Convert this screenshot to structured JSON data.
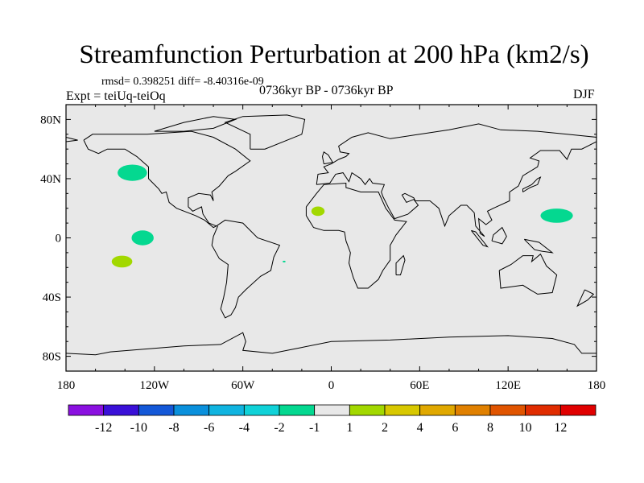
{
  "title": "Streamfunction Perturbation at 200 hPa (km2/s)",
  "stats": "rmsd= 0.398251 diff= -8.40316e-09",
  "experiment": "Expt = teiUq-teiOq",
  "period": "0736kyr BP - 0736kyr BP",
  "season": "DJF",
  "chart_data": {
    "type": "heatmap",
    "projection": "cylindrical-equidistant",
    "lon_range": [
      -180,
      180
    ],
    "lat_range": [
      -90,
      90
    ],
    "x_ticks": [
      {
        "lon": -180,
        "label": "180"
      },
      {
        "lon": -120,
        "label": "120W"
      },
      {
        "lon": -60,
        "label": "60W"
      },
      {
        "lon": 0,
        "label": "0"
      },
      {
        "lon": 60,
        "label": "60E"
      },
      {
        "lon": 120,
        "label": "120E"
      },
      {
        "lon": 180,
        "label": "180"
      }
    ],
    "y_ticks": [
      {
        "lat": 80,
        "label": "80N"
      },
      {
        "lat": 40,
        "label": "40N"
      },
      {
        "lat": 0,
        "label": "0"
      },
      {
        "lat": -40,
        "label": "40S"
      },
      {
        "lat": -80,
        "label": "80S"
      }
    ],
    "colorbar": {
      "labels": [
        "-12",
        "-10",
        "-8",
        "-6",
        "-4",
        "-2",
        "-1",
        "1",
        "2",
        "4",
        "6",
        "8",
        "10",
        "12"
      ],
      "colors": [
        "#8a10e0",
        "#3a10d8",
        "#1458d8",
        "#0a90dc",
        "#10b4e0",
        "#10d2d8",
        "#04d890",
        "#e8e8e8",
        "#a2d800",
        "#d8c800",
        "#e0a800",
        "#e08000",
        "#e05400",
        "#e02c00",
        "#e00000"
      ]
    },
    "anomalies": [
      {
        "lon": -135,
        "lat": 44,
        "dlon": 10,
        "dlat": 5.5,
        "range": "-2 to -1",
        "color": "#04d890"
      },
      {
        "lon": -128,
        "lat": 0,
        "dlon": 7.5,
        "dlat": 5,
        "range": "-2 to -1",
        "color": "#04d890"
      },
      {
        "lon": -142,
        "lat": -16,
        "dlon": 7,
        "dlat": 4,
        "range": "1 to 2",
        "color": "#a2d800"
      },
      {
        "lon": -9,
        "lat": 18,
        "dlon": 4.5,
        "dlat": 3.2,
        "range": "1 to 2",
        "color": "#a2d800"
      },
      {
        "lon": 153,
        "lat": 15,
        "dlon": 11,
        "dlat": 4.8,
        "range": "-2 to -1",
        "color": "#04d890"
      },
      {
        "lon": -32,
        "lat": -16,
        "dlon": 1,
        "dlat": 0.6,
        "range": "-2 to -1",
        "color": "#04d890"
      }
    ]
  }
}
